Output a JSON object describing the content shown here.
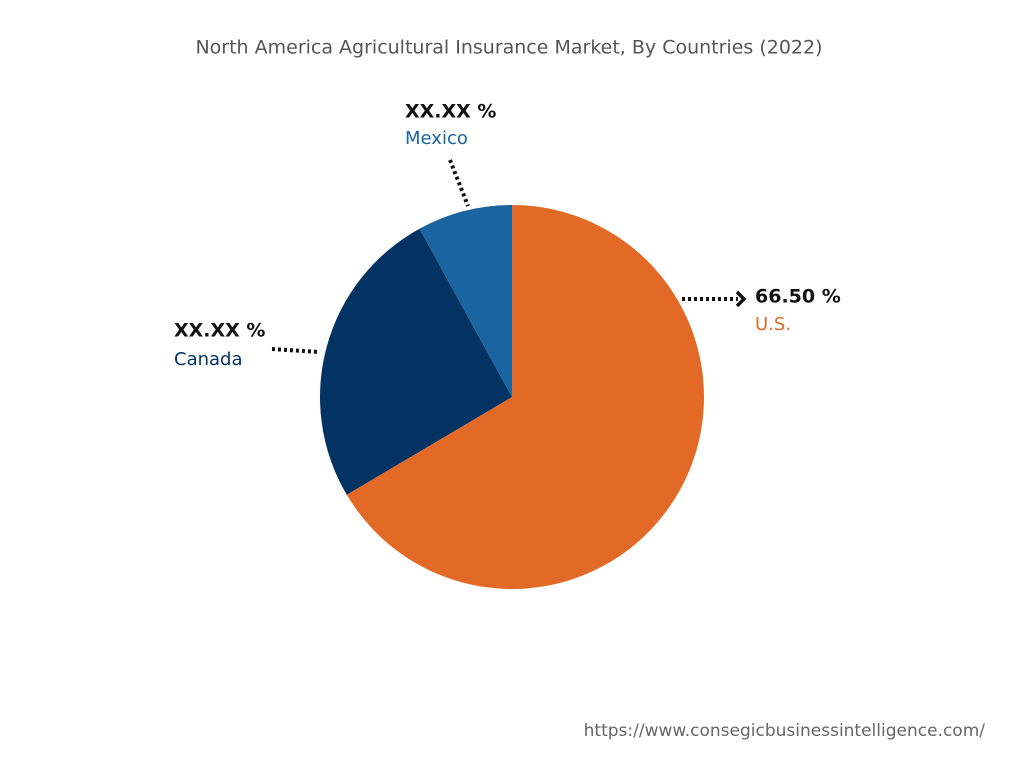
{
  "chart_data": {
    "type": "pie",
    "title": "North America Agricultural Insurance Market, By Countries (2022)",
    "categories": [
      "U.S.",
      "Canada",
      "Mexico"
    ],
    "values": [
      66.5,
      25.5,
      8
    ],
    "value_labels": [
      "66.50 %",
      "XX.XX %",
      "XX.XX %"
    ],
    "colors": [
      "#e36a26",
      "#033363",
      "#1a64a0"
    ],
    "source": "https://www.consegicbusinessintelligence.com/"
  }
}
